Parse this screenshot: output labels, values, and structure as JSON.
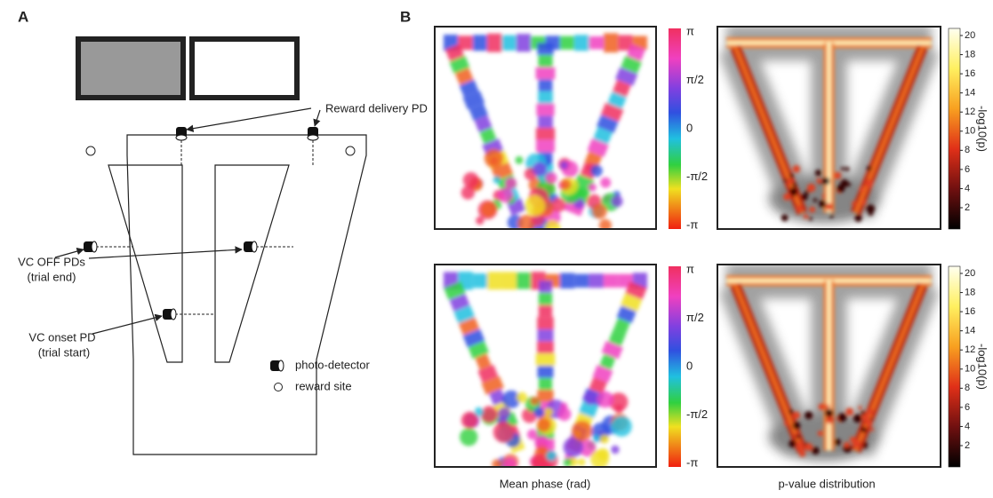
{
  "panel_a": {
    "label": "A",
    "annotations": {
      "reward_delivery": "Reward delivery PD",
      "vc_off": "VC OFF PDs",
      "vc_off_note": "(trial end)",
      "vc_onset": "VC onset PD",
      "vc_onset_note": "(trial start)"
    },
    "legend": [
      "photo-detector",
      "reward site"
    ]
  },
  "panel_b": {
    "label": "B",
    "phase_ticks": [
      "π",
      "π/2",
      "0",
      "-π/2",
      "-π"
    ],
    "pvalue_ticks": [
      20,
      18,
      16,
      14,
      12,
      10,
      8,
      6,
      4,
      2
    ],
    "pvalue_axis_label": "-log10(p)",
    "captions": [
      "Mean phase (rad)",
      "p-value distribution"
    ]
  }
}
